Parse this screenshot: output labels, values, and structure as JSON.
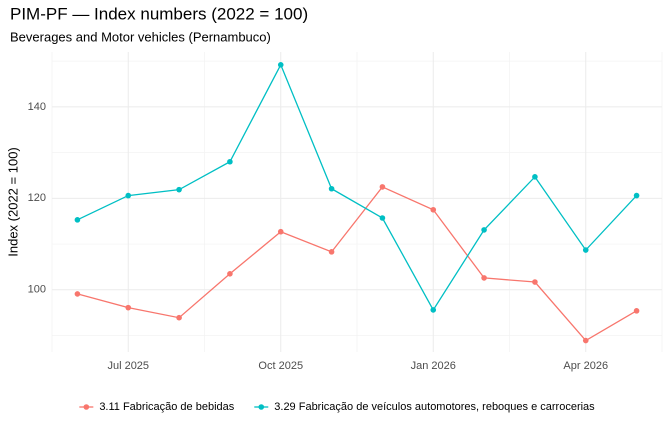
{
  "chart_data": {
    "type": "line",
    "title": "PIM-PF — Index numbers (2022 = 100)",
    "subtitle": "Beverages and Motor vehicles (Pernambuco)",
    "ylabel": "Index (2022 = 100)",
    "x": [
      "2025-06",
      "2025-07",
      "2025-08",
      "2025-09",
      "2025-10",
      "2025-11",
      "2025-12",
      "2026-01",
      "2026-02",
      "2026-03",
      "2026-04",
      "2026-05"
    ],
    "xticks": [
      {
        "value": "2025-07",
        "label": "Jul 2025"
      },
      {
        "value": "2025-10",
        "label": "Oct 2025"
      },
      {
        "value": "2026-01",
        "label": "Jan 2026"
      },
      {
        "value": "2026-04",
        "label": "Apr 2026"
      }
    ],
    "ylim": [
      86.4,
      152
    ],
    "yticks": [
      100,
      120,
      140
    ],
    "grid": true,
    "legend": "bottom",
    "series": [
      {
        "name": "3.11 Fabricação de bebidas",
        "color": "#F8766D",
        "values": [
          99.1,
          96.1,
          93.9,
          103.5,
          112.7,
          108.3,
          122.5,
          117.5,
          102.6,
          101.7,
          88.9,
          95.4
        ]
      },
      {
        "name": "3.29 Fabricação de veículos automotores, reboques e carrocerias",
        "color": "#00BFC4",
        "values": [
          115.3,
          120.6,
          121.9,
          128.0,
          149.2,
          122.1,
          115.7,
          95.6,
          113.1,
          124.7,
          108.7,
          120.6
        ]
      }
    ]
  }
}
